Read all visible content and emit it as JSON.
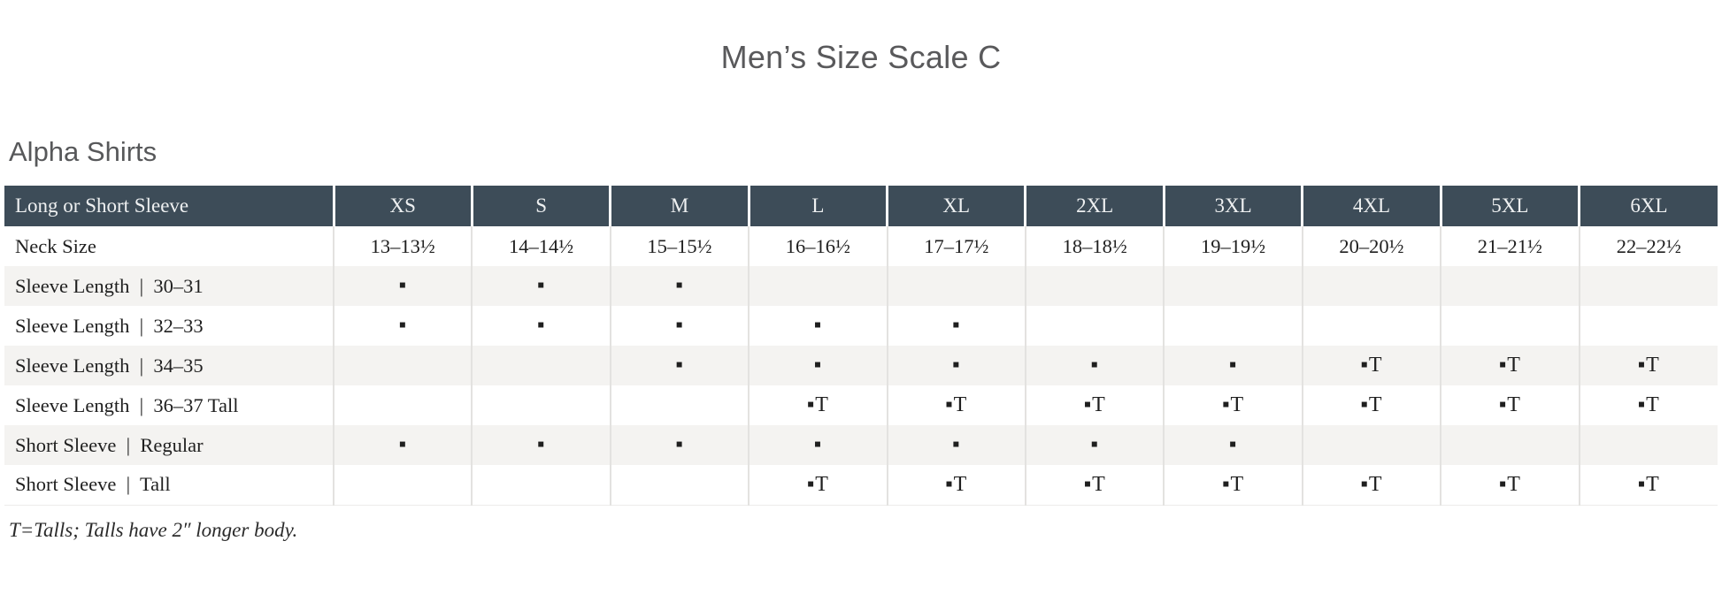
{
  "page": {
    "title": "Men’s Size Scale C",
    "section_title": "Alpha Shirts",
    "footnote": "T=Talls; Talls have 2″ longer body."
  },
  "colors": {
    "header_bg": "#3d4c58",
    "header_text": "#eef0f1",
    "row_stripe": "#f4f3f1",
    "divider": "#e3e2e0",
    "title_text": "#59595b",
    "body_text": "#1f1f1f"
  },
  "table": {
    "corner_label": "Long or Short Sleeve",
    "sizes": [
      "XS",
      "S",
      "M",
      "L",
      "XL",
      "2XL",
      "3XL",
      "4XL",
      "5XL",
      "6XL"
    ],
    "legend": {
      "square": "▪",
      "square_tall": "▪T"
    },
    "rows": [
      {
        "label": "Neck Size",
        "cells": [
          "13–13½",
          "14–14½",
          "15–15½",
          "16–16½",
          "17–17½",
          "18–18½",
          "19–19½",
          "20–20½",
          "21–21½",
          "22–22½"
        ]
      },
      {
        "label": "Sleeve Length  |  30–31",
        "cells": [
          "▪",
          "▪",
          "▪",
          "",
          "",
          "",
          "",
          "",
          "",
          ""
        ]
      },
      {
        "label": "Sleeve Length  |  32–33",
        "cells": [
          "▪",
          "▪",
          "▪",
          "▪",
          "▪",
          "",
          "",
          "",
          "",
          ""
        ]
      },
      {
        "label": "Sleeve Length  |  34–35",
        "cells": [
          "",
          "",
          "▪",
          "▪",
          "▪",
          "▪",
          "▪",
          "▪T",
          "▪T",
          "▪T"
        ]
      },
      {
        "label": "Sleeve Length  |  36–37 Tall",
        "cells": [
          "",
          "",
          "",
          "▪T",
          "▪T",
          "▪T",
          "▪T",
          "▪T",
          "▪T",
          "▪T"
        ]
      },
      {
        "label": "Short Sleeve  |  Regular",
        "cells": [
          "▪",
          "▪",
          "▪",
          "▪",
          "▪",
          "▪",
          "▪",
          "",
          "",
          ""
        ]
      },
      {
        "label": "Short Sleeve  |  Tall",
        "cells": [
          "",
          "",
          "",
          "▪T",
          "▪T",
          "▪T",
          "▪T",
          "▪T",
          "▪T",
          "▪T"
        ]
      }
    ]
  }
}
